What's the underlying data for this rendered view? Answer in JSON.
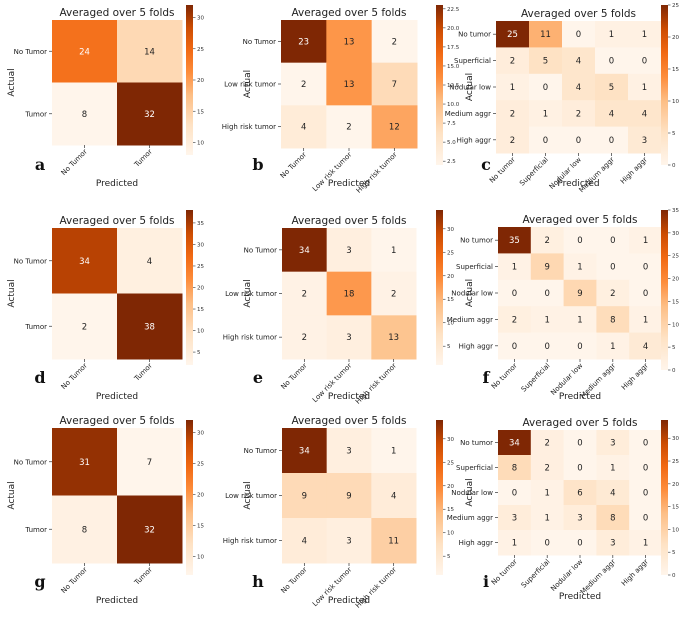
{
  "chart_data": [
    {
      "id": "a",
      "panel_label": "a",
      "type": "heatmap",
      "title": "Averaged over 5 folds",
      "xlabel": "Predicted",
      "ylabel": "Actual",
      "row_labels": [
        "No Tumor",
        "Tumor"
      ],
      "col_labels": [
        "No Tumor",
        "Tumor"
      ],
      "values": [
        [
          24,
          14
        ],
        [
          8,
          32
        ]
      ],
      "vmin": 8,
      "vmax": 32,
      "colorbar_ticks": [
        "30",
        "25",
        "20",
        "15",
        "10"
      ]
    },
    {
      "id": "b",
      "panel_label": "b",
      "type": "heatmap",
      "title": "Averaged over 5 folds",
      "xlabel": "Predicted",
      "ylabel": "Actual",
      "row_labels": [
        "No Tumor",
        "Low risk tumor",
        "High risk tumor"
      ],
      "col_labels": [
        "No Tumor",
        "Low risk tumor",
        "High risk tumor"
      ],
      "values": [
        [
          23,
          13,
          2
        ],
        [
          2,
          13,
          7
        ],
        [
          4,
          2,
          12
        ]
      ],
      "vmin": 2,
      "vmax": 23,
      "colorbar_ticks": [
        "22.5",
        "20.0",
        "17.5",
        "15.0",
        "12.5",
        "10.0",
        "7.5",
        "5.0",
        "2.5"
      ]
    },
    {
      "id": "c",
      "panel_label": "c",
      "type": "heatmap",
      "title": "Averaged over 5 folds",
      "xlabel": "Predicted",
      "ylabel": "Actual",
      "row_labels": [
        "No tumor",
        "Superficial",
        "Nodular low",
        "Medium aggr",
        "High aggr"
      ],
      "col_labels": [
        "No tumor",
        "Superficial",
        "Nodular low",
        "Medium aggr",
        "High aggr"
      ],
      "values": [
        [
          25,
          11,
          0,
          1,
          1
        ],
        [
          2,
          5,
          4,
          0,
          0
        ],
        [
          1,
          0,
          4,
          5,
          1
        ],
        [
          2,
          1,
          2,
          4,
          4
        ],
        [
          2,
          0,
          0,
          0,
          3
        ]
      ],
      "vmin": 0,
      "vmax": 25,
      "colorbar_ticks": [
        "25",
        "20",
        "15",
        "10",
        "5",
        "0"
      ]
    },
    {
      "id": "d",
      "panel_label": "d",
      "type": "heatmap",
      "title": "Averaged over 5 folds",
      "xlabel": "Predicted",
      "ylabel": "Actual",
      "row_labels": [
        "No Tumor",
        "Tumor"
      ],
      "col_labels": [
        "No Tumor",
        "Tumor"
      ],
      "values": [
        [
          34,
          4
        ],
        [
          2,
          38
        ]
      ],
      "vmin": 2,
      "vmax": 38,
      "colorbar_ticks": [
        "35",
        "30",
        "25",
        "20",
        "15",
        "10",
        "5"
      ]
    },
    {
      "id": "e",
      "panel_label": "e",
      "type": "heatmap",
      "title": "Averaged over 5 folds",
      "xlabel": "Predicted",
      "ylabel": "Actual",
      "row_labels": [
        "No Tumor",
        "Low risk tumor",
        "High risk tumor"
      ],
      "col_labels": [
        "No Tumor",
        "Low risk tumor",
        "High risk tumor"
      ],
      "values": [
        [
          34,
          3,
          1
        ],
        [
          2,
          18,
          2
        ],
        [
          2,
          3,
          13
        ]
      ],
      "vmin": 1,
      "vmax": 34,
      "colorbar_ticks": [
        "30",
        "25",
        "20",
        "15",
        "10",
        "5"
      ]
    },
    {
      "id": "f",
      "panel_label": "f",
      "type": "heatmap",
      "title": "Averaged over 5 folds",
      "xlabel": "Predicted",
      "ylabel": "Actual",
      "row_labels": [
        "No tumor",
        "Superficial",
        "Nodular low",
        "Medium aggr",
        "High aggr"
      ],
      "col_labels": [
        "No tumor",
        "Superficial",
        "Nodular low",
        "Medium aggr",
        "High aggr"
      ],
      "values": [
        [
          35,
          2,
          0,
          0,
          1
        ],
        [
          1,
          9,
          1,
          0,
          0
        ],
        [
          0,
          0,
          9,
          2,
          0
        ],
        [
          2,
          1,
          1,
          8,
          1
        ],
        [
          0,
          0,
          0,
          1,
          4
        ]
      ],
      "vmin": 0,
      "vmax": 35,
      "colorbar_ticks": [
        "35",
        "30",
        "25",
        "20",
        "15",
        "10",
        "5",
        "0"
      ]
    },
    {
      "id": "g",
      "panel_label": "g",
      "type": "heatmap",
      "title": "Averaged over 5 folds",
      "xlabel": "Predicted",
      "ylabel": "Actual",
      "row_labels": [
        "No Tumor",
        "Tumor"
      ],
      "col_labels": [
        "No Tumor",
        "Tumor"
      ],
      "values": [
        [
          31,
          7
        ],
        [
          8,
          32
        ]
      ],
      "vmin": 7,
      "vmax": 32,
      "colorbar_ticks": [
        "30",
        "25",
        "20",
        "15",
        "10"
      ]
    },
    {
      "id": "h",
      "panel_label": "h",
      "type": "heatmap",
      "title": "Averaged over 5 folds",
      "xlabel": "Predicted",
      "ylabel": "Actual",
      "row_labels": [
        "No Tumor",
        "Low risk tumor",
        "High risk tumor"
      ],
      "col_labels": [
        "No Tumor",
        "Low risk tumor",
        "High risk tumor"
      ],
      "values": [
        [
          34,
          3,
          1
        ],
        [
          9,
          9,
          4
        ],
        [
          4,
          3,
          11
        ]
      ],
      "vmin": 1,
      "vmax": 34,
      "colorbar_ticks": [
        "30",
        "25",
        "20",
        "15",
        "10",
        "5"
      ]
    },
    {
      "id": "i",
      "panel_label": "i",
      "type": "heatmap",
      "title": "Averaged over 5 folds",
      "xlabel": "Predicted",
      "ylabel": "Actual",
      "row_labels": [
        "No tumor",
        "Superficial",
        "Nodular low",
        "Medium aggr",
        "High aggr"
      ],
      "col_labels": [
        "No tumor",
        "Superficial",
        "Nodular low",
        "Medium aggr",
        "High aggr"
      ],
      "values": [
        [
          34,
          2,
          0,
          3,
          0
        ],
        [
          8,
          2,
          0,
          1,
          0
        ],
        [
          0,
          1,
          6,
          4,
          0
        ],
        [
          3,
          1,
          3,
          8,
          0
        ],
        [
          1,
          0,
          0,
          3,
          1
        ]
      ],
      "vmin": 0,
      "vmax": 34,
      "colorbar_ticks": [
        "30",
        "25",
        "20",
        "15",
        "10",
        "5",
        "0"
      ]
    }
  ],
  "colormap": {
    "low": "#fff5eb",
    "mid": "#fd8d3c",
    "high": "#7f2704"
  }
}
